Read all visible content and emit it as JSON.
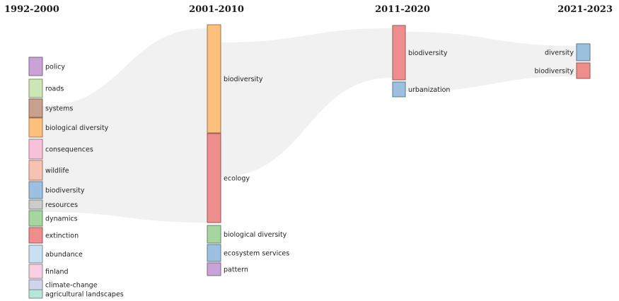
{
  "colors": {
    "purple": "#c9a3d6",
    "lightgreen": "#cde7b4",
    "brown": "#c9a08c",
    "orange": "#fcc07d",
    "pink": "#f7c1da",
    "salmon": "#f7c2b2",
    "blue": "#9cc0df",
    "gray": "#cccccc",
    "green": "#a6d6a0",
    "red": "#ef8d8d",
    "lightblue": "#c8e0ef",
    "lightpink": "#f7cfe5",
    "lavender": "#d2d4ec",
    "mint": "#b8e5da"
  },
  "periods": [
    {
      "title": "1992-2000",
      "terms": [
        {
          "label": "policy",
          "color": "purple"
        },
        {
          "label": "roads",
          "color": "lightgreen"
        },
        {
          "label": "systems",
          "color": "brown"
        },
        {
          "label": "biological diversity",
          "color": "orange"
        },
        {
          "label": "consequences",
          "color": "pink"
        },
        {
          "label": "wildlife",
          "color": "salmon"
        },
        {
          "label": "biodiversity",
          "color": "blue"
        },
        {
          "label": "resources",
          "color": "gray"
        },
        {
          "label": "dynamics",
          "color": "green"
        },
        {
          "label": "extinction",
          "color": "red"
        },
        {
          "label": "abundance",
          "color": "lightblue"
        },
        {
          "label": "finland",
          "color": "lightpink"
        },
        {
          "label": "climate-change",
          "color": "lavender"
        },
        {
          "label": "agricultural landscapes",
          "color": "mint"
        }
      ]
    },
    {
      "title": "2001-2010",
      "terms": [
        {
          "label": "biodiversity",
          "color": "orange"
        },
        {
          "label": "ecology",
          "color": "red"
        },
        {
          "label": "biological diversity",
          "color": "green"
        },
        {
          "label": "ecosystem services",
          "color": "blue"
        },
        {
          "label": "pattern",
          "color": "purple"
        }
      ]
    },
    {
      "title": "2011-2020",
      "terms": [
        {
          "label": "biodiversity",
          "color": "red"
        },
        {
          "label": "urbanization",
          "color": "blue"
        }
      ]
    },
    {
      "title": "2021-2023",
      "terms": [
        {
          "label": "diversity",
          "color": "blue"
        },
        {
          "label": "biodiversity",
          "color": "red"
        }
      ]
    }
  ]
}
